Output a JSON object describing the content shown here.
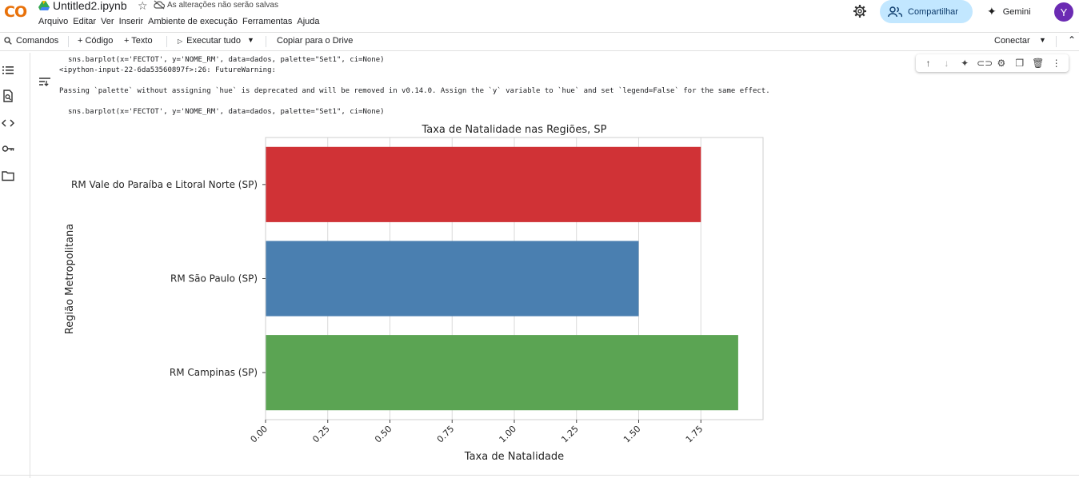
{
  "app": {
    "logo": "CO",
    "notebook_title": "Untitled2.ipynb",
    "unsaved_notice": "As alterações não serão salvas",
    "menu": [
      "Arquivo",
      "Editar",
      "Ver",
      "Inserir",
      "Ambiente de execução",
      "Ferramentas",
      "Ajuda"
    ],
    "share_label": "Compartilhar",
    "gemini_label": "Gemini",
    "avatar_initial": "Y"
  },
  "toolbar": {
    "commands_label": "Comandos",
    "code_label": "+ Código",
    "text_label": "+ Texto",
    "run_all_label": "Executar tudo",
    "copy_drive_label": "Copiar para o Drive",
    "connect_label": "Conectar"
  },
  "cell": {
    "code_line_1": "sns.barplot(x='FECTOT', y='NOME_RM', data=dados, palette=\"Set1\", ci=None)",
    "warning_header": "<ipython-input-22-6da53560897f>:26: FutureWarning:",
    "warning_message": "Passing `palette` without assigning `hue` is deprecated and will be removed in v0.14.0. Assign the `y` variable to `hue` and set `legend=False` for the same effect.",
    "code_line_2": "sns.barplot(x='FECTOT', y='NOME_RM', data=dados, palette=\"Set1\", ci=None)"
  },
  "chart_data": {
    "type": "bar",
    "orientation": "horizontal",
    "title": "Taxa de Natalidade nas Regiões, SP",
    "xlabel": "Taxa de Natalidade",
    "ylabel": "Região Metropolitana",
    "categories": [
      "RM Vale do Paraíba e Litoral Norte (SP)",
      "RM São Paulo (SP)",
      "RM Campinas (SP)"
    ],
    "values": [
      1.75,
      1.5,
      1.9
    ],
    "colors": [
      "#d03236",
      "#4a7fb0",
      "#5ba453"
    ],
    "xlim": [
      0,
      2.0
    ],
    "xticks": [
      "0.00",
      "0.25",
      "0.50",
      "0.75",
      "1.00",
      "1.25",
      "1.50",
      "1.75"
    ],
    "xtick_values": [
      0,
      0.25,
      0.5,
      0.75,
      1.0,
      1.25,
      1.5,
      1.75
    ],
    "grid": "x"
  }
}
